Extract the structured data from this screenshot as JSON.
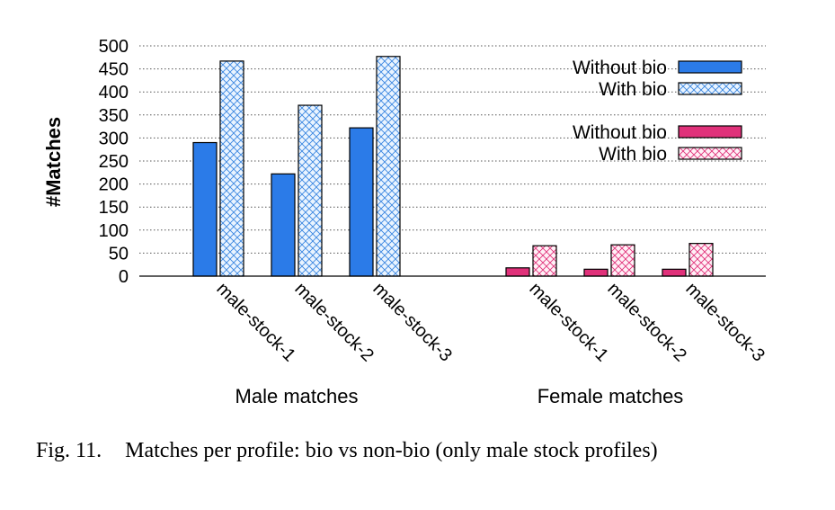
{
  "chart_data": {
    "type": "bar",
    "ylabel": "#Matches",
    "ylim": [
      0,
      500
    ],
    "yticks": [
      0,
      50,
      100,
      150,
      200,
      250,
      300,
      350,
      400,
      450,
      500
    ],
    "grid": true,
    "legend_position": "top-right",
    "groups": [
      {
        "label": "Male matches",
        "categories": [
          "male-stock-1",
          "male-stock-2",
          "male-stock-3"
        ],
        "series": [
          {
            "name": "Without bio",
            "color": "#2b7be8",
            "pattern": "solid",
            "values": [
              290,
              222,
              322
            ]
          },
          {
            "name": "With bio",
            "color": "#2b7be8",
            "pattern": "crosshatch",
            "values": [
              467,
              371,
              477
            ]
          }
        ]
      },
      {
        "label": "Female matches",
        "categories": [
          "male-stock-1",
          "male-stock-2",
          "male-stock-3"
        ],
        "series": [
          {
            "name": "Without bio",
            "color": "#e0317a",
            "pattern": "solid",
            "values": [
              18,
              15,
              15
            ]
          },
          {
            "name": "With bio",
            "color": "#e0317a",
            "pattern": "crosshatch",
            "values": [
              66,
              68,
              71
            ]
          }
        ]
      }
    ]
  },
  "caption": {
    "label": "Fig. 11.",
    "text": "Matches per profile: bio vs non-bio (only male stock profiles)"
  }
}
